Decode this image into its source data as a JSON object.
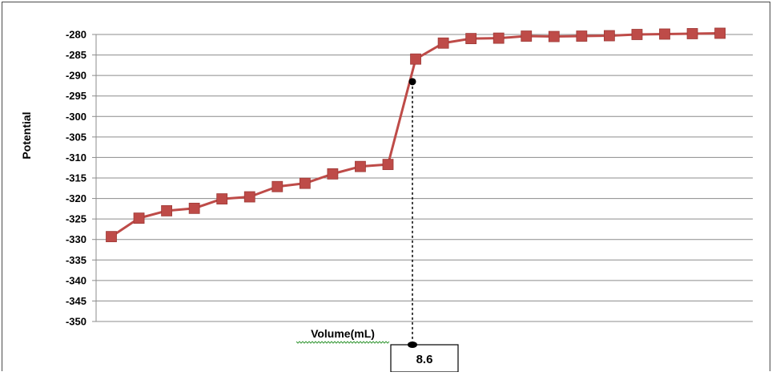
{
  "chart_data": {
    "type": "line",
    "xlabel": "Volume(mL)",
    "ylabel": "Potential",
    "ylim": [
      -350,
      -280
    ],
    "yticks": [
      -280,
      -285,
      -290,
      -295,
      -300,
      -305,
      -310,
      -315,
      -320,
      -325,
      -330,
      -335,
      -340,
      -345,
      -350
    ],
    "grid": true,
    "series": [
      {
        "color": "#be4b48",
        "values": [
          -329.3,
          -324.8,
          -323.0,
          -322.4,
          -320.1,
          -319.6,
          -317.1,
          -316.3,
          -314.0,
          -312.2,
          -311.7,
          -286.0,
          -282.1,
          -281.0,
          -280.9,
          -280.4,
          -280.5,
          -280.4,
          -280.3,
          -280.0,
          -279.9,
          -279.8,
          -279.7
        ]
      }
    ],
    "annotation": {
      "label": "8.6",
      "point_value": -291.5
    }
  }
}
